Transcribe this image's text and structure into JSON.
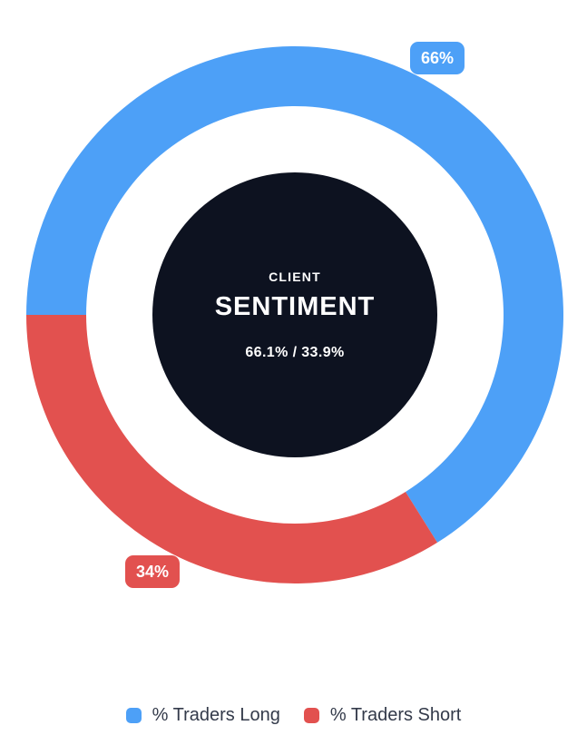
{
  "chart_data": {
    "type": "doughnut",
    "title": "Client Sentiment",
    "rotation_deg": 270,
    "legend_position": "bottom",
    "series": [
      {
        "label": "% Traders Long",
        "value": 66.1,
        "datalabel": "66%",
        "color": "#4da0f7"
      },
      {
        "label": "% Traders Short",
        "value": 33.9,
        "datalabel": "34%",
        "color": "#e2514f"
      }
    ],
    "center": {
      "eyebrow": "CLIENT",
      "title": "SENTIMENT",
      "values_text": "66.1% / 33.9%",
      "bg_color": "#0d1220",
      "text_color": "#ffffff"
    }
  }
}
